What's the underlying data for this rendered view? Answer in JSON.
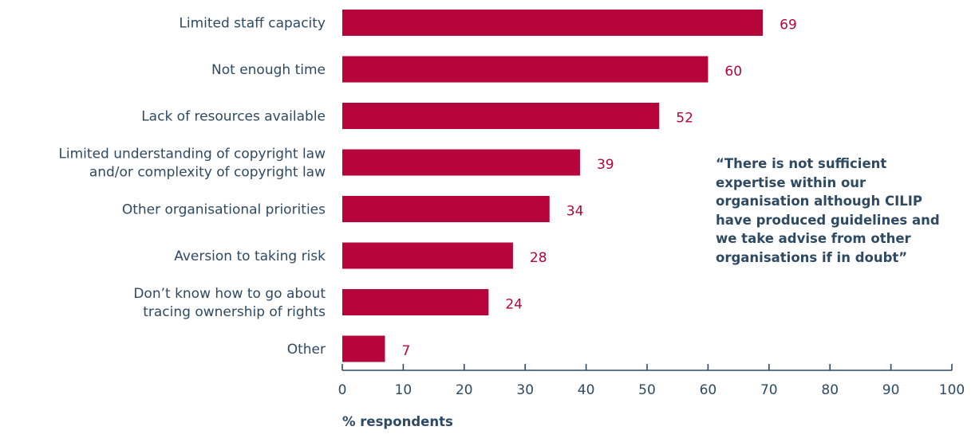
{
  "colors": {
    "bar": "#b5053a",
    "text": "#2e4a63",
    "axis": "#2e4a63"
  },
  "quote": "“There is not sufficient expertise within our organisation although CILIP have produced guidelines and we take advise from other organisations if in doubt”",
  "chart_data": {
    "type": "bar",
    "orientation": "horizontal",
    "categories": [
      [
        "Limited staff capacity"
      ],
      [
        "Not enough time"
      ],
      [
        "Lack of resources available"
      ],
      [
        "Limited understanding of copyright law",
        "and/or complexity of copyright law"
      ],
      [
        "Other organisational priorities"
      ],
      [
        "Aversion to taking risk"
      ],
      [
        "Don’t know how to go about",
        "tracing ownership of rights"
      ],
      [
        "Other"
      ]
    ],
    "values": [
      69,
      60,
      52,
      39,
      34,
      28,
      24,
      7
    ],
    "data_labels": [
      "69",
      "60",
      "52",
      "39",
      "34",
      "28",
      "24",
      "7"
    ],
    "xlabel": "% respondents",
    "ylabel": "",
    "xlim": [
      0,
      100
    ],
    "xticks": [
      0,
      10,
      20,
      30,
      40,
      50,
      60,
      70,
      80,
      90,
      100
    ],
    "grid": false,
    "legend": "none"
  }
}
